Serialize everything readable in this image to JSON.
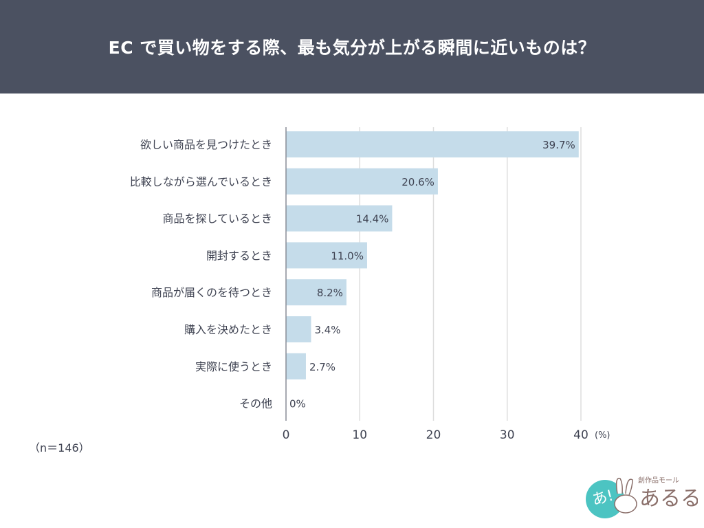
{
  "header": {
    "title": "EC で買い物をする際、最も気分が上がる瞬間に近いものは？"
  },
  "sample_note": "（n＝146）",
  "logo": {
    "text": "あるる",
    "subtext": "創作品モール",
    "badge": "あ!"
  },
  "chart_data": {
    "type": "bar",
    "orientation": "horizontal",
    "title": "EC で買い物をする際、最も気分が上がる瞬間に近いものは？",
    "categories": [
      "欲しい商品を見つけたとき",
      "比較しながら選んでいるとき",
      "商品を探しているとき",
      "開封するとき",
      "商品が届くのを待つとき",
      "購入を決めたとき",
      "実際に使うとき",
      "その他"
    ],
    "values": [
      39.7,
      20.6,
      14.4,
      11.0,
      8.2,
      3.4,
      2.7,
      0
    ],
    "data_labels": [
      "39.7%",
      "20.6%",
      "14.4%",
      "11.0%",
      "8.2%",
      "3.4%",
      "2.7%",
      "0%"
    ],
    "xlim": [
      0,
      40
    ],
    "xticks": [
      "0",
      "10",
      "20",
      "30",
      "40"
    ],
    "xunit": "(%)",
    "grid": true,
    "colors": {
      "bar": "#c5dcea",
      "text": "#3f4352",
      "grid": "#dddddd"
    }
  }
}
